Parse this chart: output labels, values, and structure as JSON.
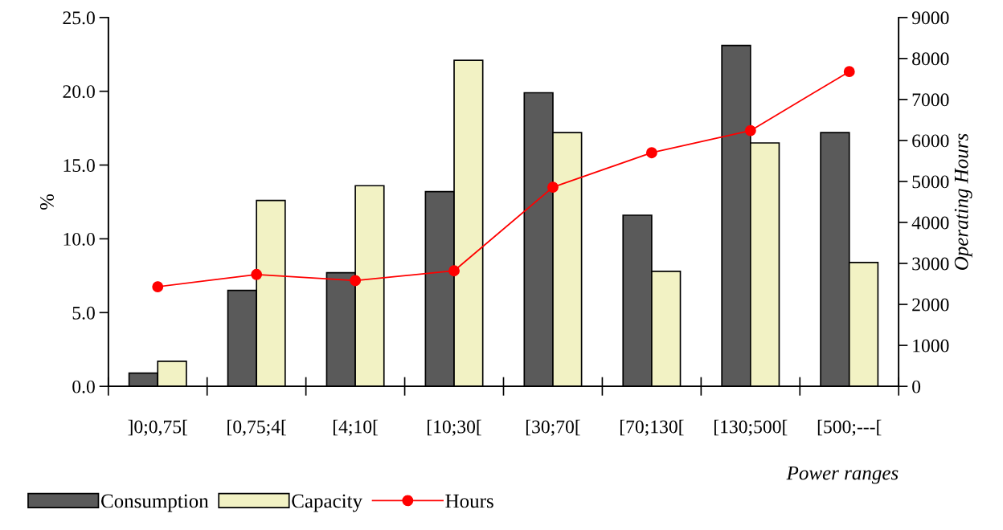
{
  "chart_data": {
    "type": "bar",
    "xlabel": "Power ranges",
    "ylabel": "%",
    "y2label": "Operating Hours",
    "categories": [
      "]0;0,75[",
      "[0,75;4[",
      "[4;10[",
      "[10;30[",
      "[30;70[",
      "[70;130[",
      "[130;500[",
      "[500;---["
    ],
    "series": [
      {
        "name": "Consumption",
        "color": "#5a5a5a",
        "values": [
          0.9,
          6.5,
          7.7,
          13.2,
          19.9,
          11.6,
          23.1,
          17.2
        ]
      },
      {
        "name": "Capacity",
        "color": "#f2f2c4",
        "values": [
          1.7,
          12.6,
          13.6,
          22.1,
          17.2,
          7.8,
          16.5,
          8.4
        ]
      },
      {
        "name": "Hours",
        "type": "line",
        "axis": "y2",
        "color": "#ff0000",
        "marker": "circle",
        "values": [
          2430,
          2730,
          2580,
          2820,
          4860,
          5700,
          6240,
          7680
        ]
      }
    ],
    "ylim": [
      0,
      25
    ],
    "yticks": [
      {
        "value": 0,
        "label": "0.0"
      },
      {
        "value": 5,
        "label": "5.0"
      },
      {
        "value": 10,
        "label": "10.0"
      },
      {
        "value": 15,
        "label": "15.0"
      },
      {
        "value": 20,
        "label": "20.0"
      },
      {
        "value": 25,
        "label": "25.0"
      }
    ],
    "y2lim": [
      0,
      9000
    ],
    "y2ticks": [
      0,
      1000,
      2000,
      3000,
      4000,
      5000,
      6000,
      7000,
      8000,
      9000
    ],
    "grid": false,
    "legend": "bottom"
  }
}
